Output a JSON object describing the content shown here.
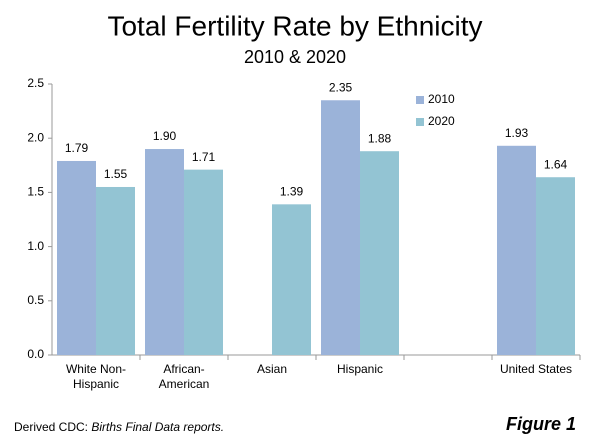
{
  "chart_data": {
    "type": "bar",
    "title": "Total Fertility Rate by Ethnicity",
    "subtitle": "2010 & 2020",
    "categories": [
      "White Non-Hispanic",
      "African-American",
      "Asian",
      "Hispanic",
      null,
      "United States"
    ],
    "series": [
      {
        "name": "2010",
        "color": "#9bb3d9",
        "values": [
          1.79,
          1.9,
          null,
          2.35,
          null,
          1.93
        ],
        "value_labels": [
          "1.79",
          "1.90",
          null,
          "2.35",
          null,
          "1.93"
        ]
      },
      {
        "name": "2020",
        "color": "#93c4d3",
        "values": [
          1.55,
          1.71,
          1.39,
          1.88,
          null,
          1.64
        ],
        "value_labels": [
          "1.55",
          "1.71",
          "1.39",
          "1.88",
          null,
          "1.64"
        ]
      }
    ],
    "ylim": [
      0,
      2.5
    ],
    "yticks": [
      {
        "value": 0,
        "label": "0.0"
      },
      {
        "value": 0.5,
        "label": "0.5"
      },
      {
        "value": 1,
        "label": "1.0"
      },
      {
        "value": 1.5,
        "label": "1.5"
      },
      {
        "value": 2,
        "label": "2.0"
      },
      {
        "value": 2.5,
        "label": "2.5"
      }
    ],
    "grid": false,
    "legend": "top-right",
    "source": "Derived  CDC:",
    "source_italic": "Births Final Data reports.",
    "figure_label": "Figure 1"
  }
}
